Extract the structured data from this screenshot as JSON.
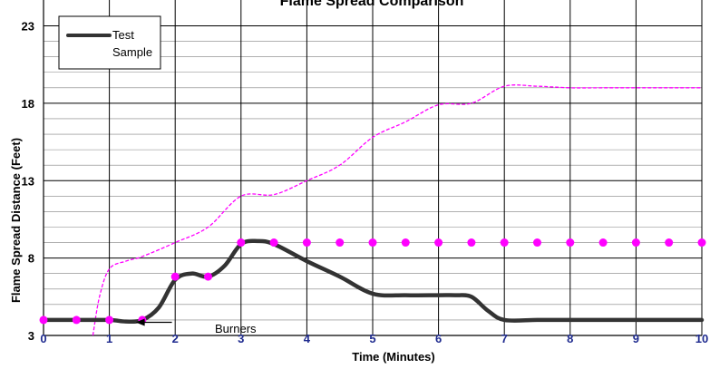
{
  "chart_data": {
    "type": "line",
    "title": "Flame Spread Comparison",
    "xlabel": "Time (Minutes)",
    "ylabel": "Flame Spread Distance (Feet)",
    "xlim": [
      0,
      10
    ],
    "ylim": [
      3,
      23.5
    ],
    "x_ticks": [
      0,
      1,
      2,
      3,
      4,
      5,
      6,
      7,
      8,
      9,
      10
    ],
    "y_ticks": [
      3,
      8,
      13,
      18,
      23
    ],
    "y_tick_labels": [
      "3",
      "8",
      "13",
      "18",
      "23"
    ],
    "grid": true,
    "legend_position": "top-left",
    "colors": {
      "test_sample": "#333333",
      "upper_curve": "#ff00ff",
      "markers": "#ff00ff",
      "x_tick_labels": "#1f2b8f",
      "y_tick_labels": "#000000"
    },
    "series": [
      {
        "name": "Test Sample",
        "style": "solid-thick",
        "x": [
          0,
          0.5,
          1,
          1.25,
          1.5,
          1.75,
          2,
          2.25,
          2.5,
          2.75,
          3,
          3.25,
          3.5,
          4,
          4.5,
          5,
          5.5,
          6,
          6.25,
          6.5,
          6.75,
          7,
          7.5,
          8,
          8.5,
          9,
          9.5,
          10
        ],
        "values": [
          4.0,
          4.0,
          4.0,
          3.9,
          4.0,
          4.8,
          6.6,
          7.0,
          6.8,
          7.5,
          8.9,
          9.1,
          8.9,
          7.8,
          6.8,
          5.7,
          5.6,
          5.6,
          5.6,
          5.5,
          4.6,
          4.0,
          4.0,
          4.0,
          4.0,
          4.0,
          4.0,
          4.0
        ]
      },
      {
        "style": "dashed",
        "x": [
          0.75,
          0.85,
          1,
          1.25,
          1.5,
          2,
          2.5,
          3,
          3.5,
          4,
          4.5,
          5,
          5.5,
          6,
          6.5,
          7,
          7.5,
          8,
          8.5,
          9,
          9.5,
          10
        ],
        "values": [
          3.0,
          5.5,
          7.3,
          7.8,
          8.1,
          9.0,
          10.0,
          12.0,
          12.1,
          13.0,
          14.0,
          15.8,
          16.8,
          17.9,
          18.0,
          19.1,
          19.1,
          19.0,
          19.0,
          19.0,
          19.0,
          19.0
        ]
      },
      {
        "style": "markers",
        "x": [
          0,
          0.5,
          1,
          1.5,
          2,
          2.5,
          3,
          3.5,
          4,
          4.5,
          5,
          5.5,
          6,
          6.5,
          7,
          7.5,
          8,
          8.5,
          9,
          9.5,
          10
        ],
        "values": [
          4.0,
          4.0,
          4.0,
          4.0,
          6.8,
          6.8,
          9.0,
          9.0,
          9.0,
          9.0,
          9.0,
          9.0,
          9.0,
          9.0,
          9.0,
          9.0,
          9.0,
          9.0,
          9.0,
          9.0,
          9.0
        ]
      }
    ],
    "annotations": [
      {
        "text": "Burners",
        "arrow_from": [
          1.95,
          3.85
        ],
        "arrow_to": [
          1.4,
          3.85
        ]
      }
    ]
  }
}
